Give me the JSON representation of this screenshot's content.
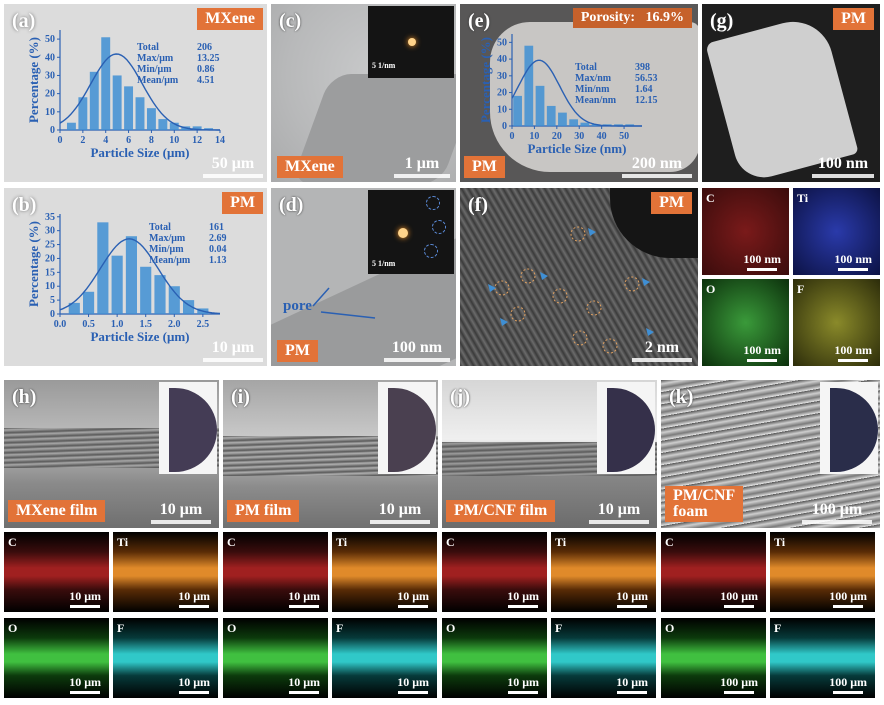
{
  "panel_a": {
    "letter": "(a)",
    "tag": "MXene",
    "scale": "50 μm",
    "stats": [
      {
        "k": "Total",
        "v": "206"
      },
      {
        "k": "Max/μm",
        "v": "13.25"
      },
      {
        "k": "Min/μm",
        "v": "0.86"
      },
      {
        "k": "Mean/μm",
        "v": "4.51"
      }
    ]
  },
  "panel_b": {
    "letter": "(b)",
    "tag": "PM",
    "scale": "10 μm",
    "stats": [
      {
        "k": "Total",
        "v": "161"
      },
      {
        "k": "Max/μm",
        "v": "2.69"
      },
      {
        "k": "Min/μm",
        "v": "0.04"
      },
      {
        "k": "Mean/μm",
        "v": "1.13"
      }
    ]
  },
  "panel_c": {
    "letter": "(c)",
    "tag": "MXene",
    "scale": "1 μm",
    "inset_scale": "5 1/nm"
  },
  "panel_d": {
    "letter": "(d)",
    "tag": "PM",
    "scale": "100 nm",
    "inset_scale": "5 1/nm",
    "annotation": "pore"
  },
  "panel_e": {
    "letter": "(e)",
    "tag": "PM",
    "scale": "200 nm",
    "porosity": "Porosity:   16.9%",
    "stats": [
      {
        "k": "Total",
        "v": "398"
      },
      {
        "k": "Max/nm",
        "v": "56.53"
      },
      {
        "k": "Min/nm",
        "v": "1.64"
      },
      {
        "k": "Mean/nm",
        "v": "12.15"
      }
    ]
  },
  "panel_f": {
    "letter": "(f)",
    "tag": "PM",
    "scale": "2 nm"
  },
  "panel_g": {
    "letter": "(g)",
    "tag": "PM",
    "scale": "100 nm",
    "maps": [
      {
        "el": "C",
        "scale": "100 nm",
        "color": "#7a1a1a"
      },
      {
        "el": "Ti",
        "scale": "100 nm",
        "color": "#1a2a8a"
      },
      {
        "el": "O",
        "scale": "100 nm",
        "color": "#2a7a2a"
      },
      {
        "el": "F",
        "scale": "100 nm",
        "color": "#6a6a1a"
      }
    ]
  },
  "panel_h": {
    "letter": "(h)",
    "tag": "MXene film",
    "scale": "10 μm"
  },
  "panel_i": {
    "letter": "(i)",
    "tag": "PM film",
    "scale": "10 μm"
  },
  "panel_j": {
    "letter": "(j)",
    "tag": "PM/CNF film",
    "scale": "10 μm"
  },
  "panel_k": {
    "letter": "(k)",
    "tag": "PM/CNF\nfoam",
    "scale": "100 μm"
  },
  "maps_h": [
    {
      "el": "C",
      "scale": "10 μm"
    },
    {
      "el": "Ti",
      "scale": "10 μm"
    },
    {
      "el": "O",
      "scale": "10 μm"
    },
    {
      "el": "F",
      "scale": "10 μm"
    }
  ],
  "maps_i": [
    {
      "el": "C",
      "scale": "10 μm"
    },
    {
      "el": "Ti",
      "scale": "10 μm"
    },
    {
      "el": "O",
      "scale": "10 μm"
    },
    {
      "el": "F",
      "scale": "10 μm"
    }
  ],
  "maps_j": [
    {
      "el": "C",
      "scale": "10 μm"
    },
    {
      "el": "Ti",
      "scale": "10 μm"
    },
    {
      "el": "O",
      "scale": "10 μm"
    },
    {
      "el": "F",
      "scale": "10 μm"
    }
  ],
  "maps_k": [
    {
      "el": "C",
      "scale": "100 μm"
    },
    {
      "el": "Ti",
      "scale": "100 μm"
    },
    {
      "el": "O",
      "scale": "100 μm"
    },
    {
      "el": "F",
      "scale": "100 μm"
    }
  ],
  "chart_data": [
    {
      "type": "bar",
      "panel": "a",
      "xlabel": "Particle Size (μm)",
      "ylabel": "Percentage (%)",
      "x_ticks": [
        "0",
        "2",
        "4",
        "6",
        "8",
        "10",
        "12",
        "14"
      ],
      "y_ticks": [
        "0",
        "10",
        "20",
        "30",
        "40",
        "50"
      ],
      "xlim": [
        0,
        14
      ],
      "ylim": [
        0,
        55
      ],
      "x": [
        1.0,
        2.0,
        3.0,
        4.0,
        5.0,
        6.0,
        7.0,
        8.0,
        9.0,
        10.0,
        11.0,
        12.0,
        13.0
      ],
      "values": [
        4,
        18,
        32,
        51,
        30,
        24,
        18,
        12,
        6,
        4,
        2,
        2,
        1
      ],
      "fit": "gaussian"
    },
    {
      "type": "bar",
      "panel": "b",
      "xlabel": "Particle Size (μm)",
      "ylabel": "Percentage (%)",
      "x_ticks": [
        "0.0",
        "0.5",
        "1.0",
        "1.5",
        "2.0",
        "2.5"
      ],
      "y_ticks": [
        "0",
        "5",
        "10",
        "15",
        "20",
        "25",
        "30",
        "35"
      ],
      "xlim": [
        0,
        2.8
      ],
      "ylim": [
        0,
        36
      ],
      "x": [
        0.25,
        0.5,
        0.75,
        1.0,
        1.25,
        1.5,
        1.75,
        2.0,
        2.25,
        2.5
      ],
      "values": [
        4,
        8,
        33,
        21,
        28,
        17,
        14,
        10,
        5,
        2
      ],
      "fit": "gaussian"
    },
    {
      "type": "bar",
      "panel": "e",
      "xlabel": "Particle Size (nm)",
      "ylabel": "Percentage (%)",
      "x_ticks": [
        "0",
        "10",
        "20",
        "30",
        "40",
        "50"
      ],
      "y_ticks": [
        "0",
        "10",
        "20",
        "30",
        "40",
        "50"
      ],
      "xlim": [
        0,
        58
      ],
      "ylim": [
        0,
        55
      ],
      "x": [
        2.5,
        7.5,
        12.5,
        17.5,
        22.5,
        27.5,
        32.5,
        37.5,
        42.5,
        47.5,
        52.5
      ],
      "values": [
        18,
        48,
        24,
        12,
        8,
        4,
        2,
        1,
        1,
        1,
        1
      ],
      "fit": "gaussian"
    }
  ]
}
